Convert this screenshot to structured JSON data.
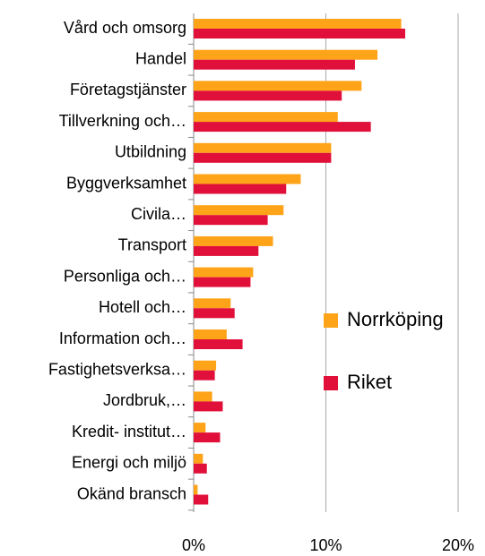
{
  "chart_data": {
    "type": "bar",
    "orientation": "horizontal",
    "categories": [
      "Vård och omsorg",
      "Handel",
      "Företagstjänster",
      "Tillverkning och…",
      "Utbildning",
      "Byggverksamhet",
      "Civila…",
      "Transport",
      "Personliga och…",
      "Hotell och…",
      "Information och…",
      "Fastighetsverksa…",
      "Jordbruk,…",
      "Kredit- institut…",
      "Energi och miljö",
      "Okänd bransch"
    ],
    "series": [
      {
        "name": "Norrköping",
        "color": "#ffa318",
        "values": [
          15.7,
          13.9,
          12.7,
          10.9,
          10.4,
          8.1,
          6.8,
          6.0,
          4.5,
          2.8,
          2.5,
          1.7,
          1.4,
          0.9,
          0.7,
          0.3
        ]
      },
      {
        "name": "Riket",
        "color": "#e0103a",
        "values": [
          16.0,
          12.2,
          11.2,
          13.4,
          10.4,
          7.0,
          5.6,
          4.9,
          4.3,
          3.1,
          3.7,
          1.6,
          2.2,
          2.0,
          1.0,
          1.1
        ]
      }
    ],
    "xlim": [
      0,
      20
    ],
    "xticks": [
      {
        "value": 0,
        "label": "0%"
      },
      {
        "value": 10,
        "label": "10%"
      },
      {
        "value": 20,
        "label": "20%"
      }
    ],
    "grid": true,
    "legend": "right"
  }
}
